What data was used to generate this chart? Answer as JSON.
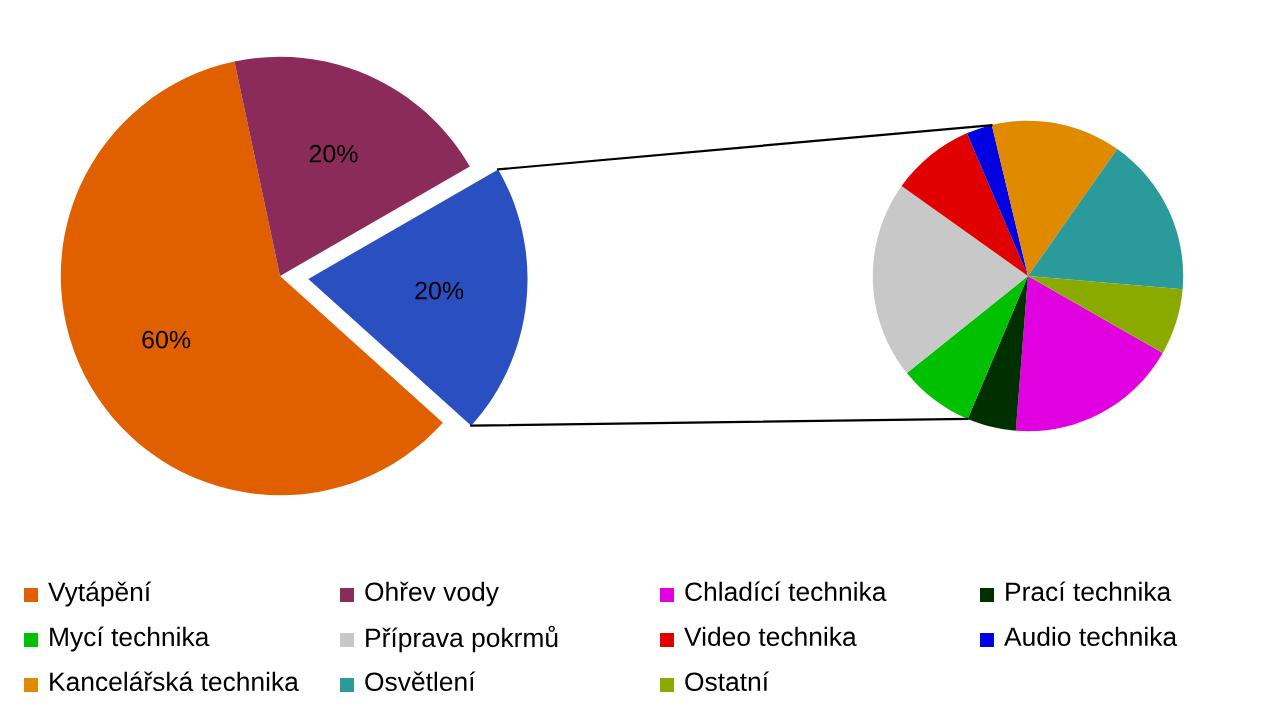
{
  "chart_data": [
    {
      "type": "pie",
      "categories": [
        "Vytápění",
        "Ohřev vody",
        null
      ],
      "values": [
        60,
        20,
        20
      ],
      "colors": [
        "#e06000",
        "#8b2b5a",
        "#2a4fc0"
      ],
      "value_labels": [
        "60%",
        "20%",
        "20%"
      ],
      "legend": "bottom"
    },
    {
      "type": "pie",
      "categories": [
        "Chladící technika",
        "Prací technika",
        "Mycí technika",
        "Příprava pokrmů",
        "Video technika",
        "Audio technika",
        "Kancelářská technika",
        "Osvětlení",
        "Ostatní"
      ],
      "values": [
        18.0,
        5.1,
        7.9,
        20.6,
        8.7,
        2.7,
        13.5,
        16.6,
        6.9
      ],
      "colors": [
        "#e000e0",
        "#003000",
        "#00c000",
        "#c8c8c8",
        "#e00000",
        "#0000e0",
        "#e08a00",
        "#2a9a9a",
        "#8aaa00"
      ],
      "legend": "bottom"
    }
  ]
}
